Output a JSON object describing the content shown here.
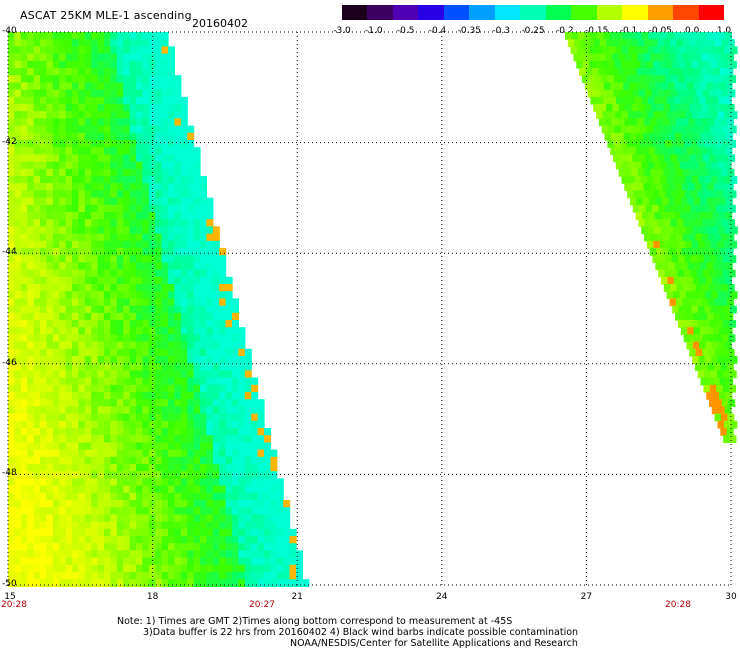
{
  "header": {
    "title": "ASCAT 25KM MLE-1 ascending",
    "date": "20160402"
  },
  "colorbar": {
    "labels": [
      "-3.0",
      "-1.0",
      "-0.5",
      "-0.4",
      "-0.35",
      "-0.3",
      "-0.25",
      "-0.2",
      "-0.15",
      "-0.1",
      "-0.05",
      "0.0",
      "1.0"
    ],
    "colors": [
      "#1a001a",
      "#3c0064",
      "#5000b4",
      "#2800e6",
      "#0050ff",
      "#00a0ff",
      "#00e6ff",
      "#00ffb4",
      "#00ff50",
      "#46ff00",
      "#b4ff00",
      "#ffff00",
      "#ffa000",
      "#ff4600",
      "#ff0000"
    ]
  },
  "map": {
    "latitude_labels": [
      "-40",
      "-42",
      "-44",
      "-46",
      "-48",
      "-50"
    ],
    "longitude_labels": [
      "15",
      "18",
      "21",
      "24",
      "27",
      "30"
    ],
    "time_labels": [
      "20:28",
      "20:27",
      "20:28"
    ],
    "lon_range": [
      15,
      30
    ],
    "lat_range": [
      -50,
      -40
    ]
  },
  "notes": {
    "line1": "Note: 1) Times are GMT 2)Times along bottom correspond to measurement at -45S",
    "line2": "3)Data buffer is 22 hrs from 20160402 4) Black wind barbs indicate possible contamination",
    "line3": "NOAA/NESDIS/Center for Satellite Applications and Research"
  }
}
